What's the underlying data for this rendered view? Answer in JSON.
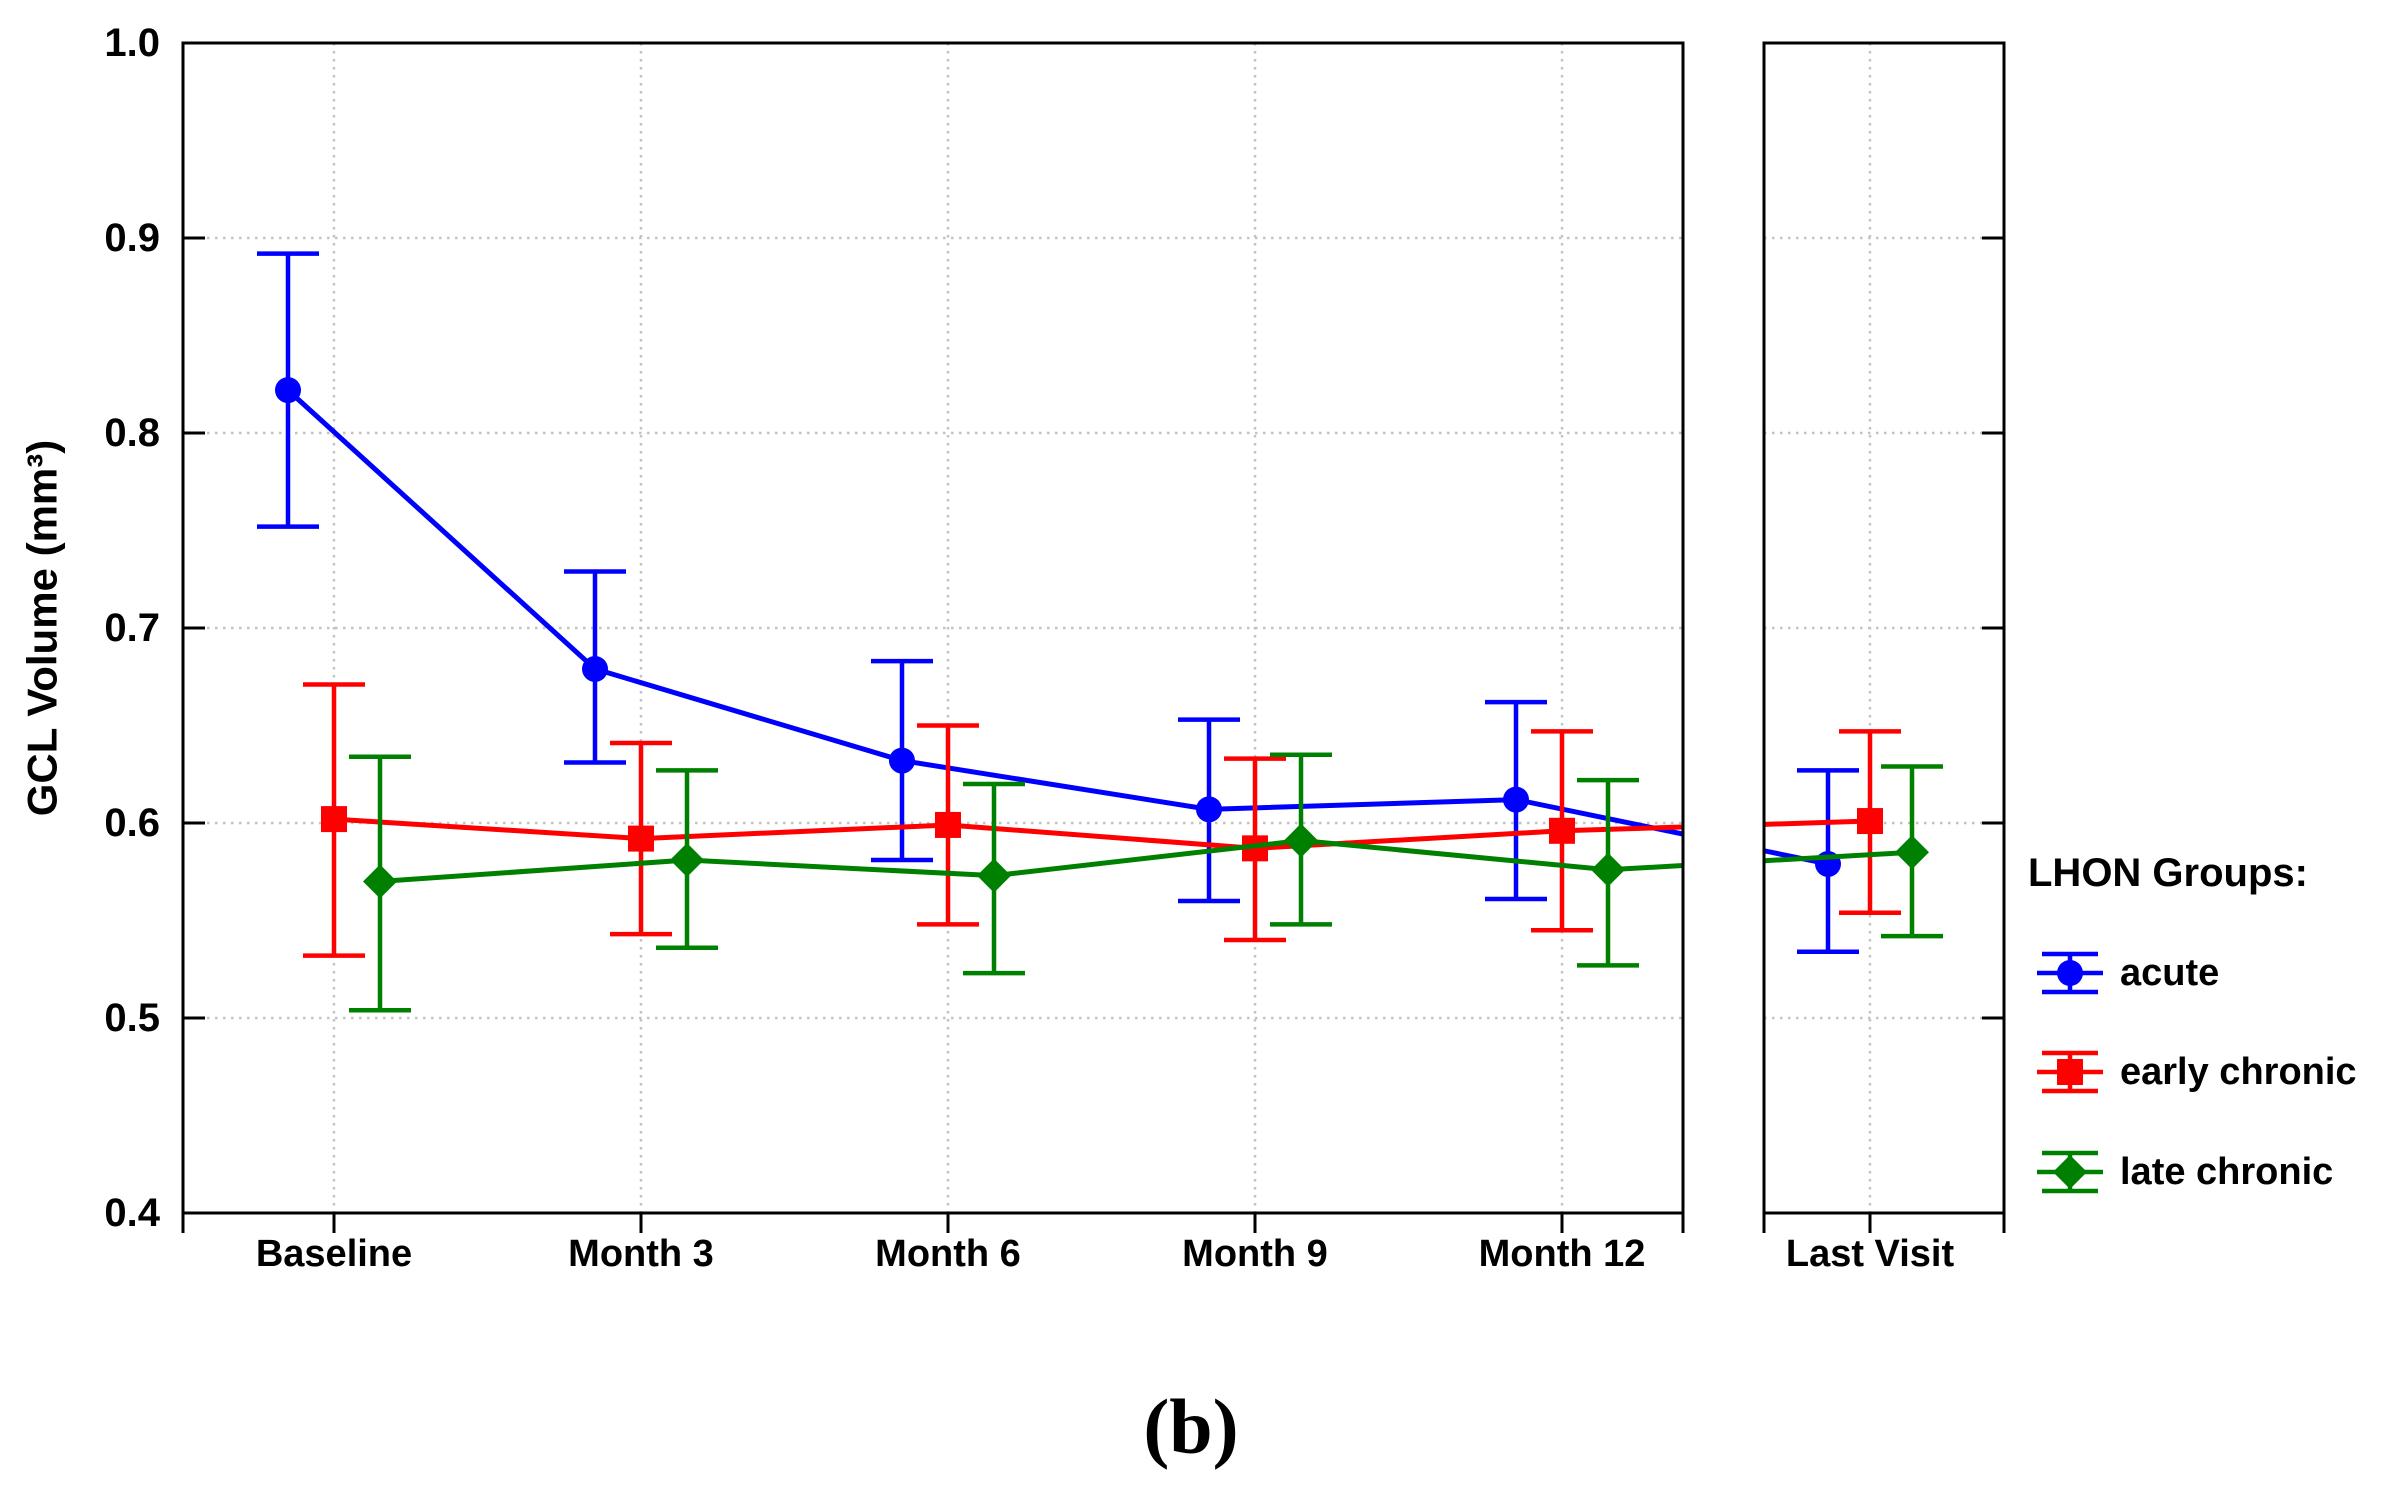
{
  "figure": {
    "caption": "(b)",
    "background": "#ffffff"
  },
  "chart_data": {
    "type": "line",
    "title": "",
    "xlabel": "",
    "ylabel": "GCL Volume (mm³)",
    "ylim": [
      0.4,
      1.0
    ],
    "ytick_labels": [
      "1.0",
      "0.9",
      "0.8",
      "0.7",
      "0.6",
      "0.5",
      "0.4"
    ],
    "grid": {
      "style": "dotted",
      "horizontal": true,
      "vertical": true,
      "color": "#c3c3c3"
    },
    "panels": [
      {
        "id": "timecourse",
        "categories": [
          "Baseline",
          "Month 3",
          "Month 6",
          "Month 9",
          "Month 12"
        ]
      },
      {
        "id": "last-visit",
        "categories": [
          "Last Visit"
        ]
      }
    ],
    "legend": {
      "title": "LHON Groups:",
      "position": "right-middle",
      "items": [
        "acute",
        "early chronic",
        "late chronic"
      ]
    },
    "series": [
      {
        "name": "acute",
        "color": "#0000ff",
        "marker": "circle",
        "values": [
          0.822,
          0.679,
          0.632,
          0.607,
          0.612,
          0.579
        ],
        "ci_low": [
          0.752,
          0.631,
          0.581,
          0.56,
          0.561,
          0.534
        ],
        "ci_high": [
          0.892,
          0.729,
          0.683,
          0.653,
          0.662,
          0.627
        ]
      },
      {
        "name": "early chronic",
        "color": "#ff0000",
        "marker": "square",
        "values": [
          0.602,
          0.592,
          0.599,
          0.587,
          0.596,
          0.601
        ],
        "ci_low": [
          0.532,
          0.543,
          0.548,
          0.54,
          0.545,
          0.554
        ],
        "ci_high": [
          0.671,
          0.641,
          0.65,
          0.633,
          0.647,
          0.647
        ]
      },
      {
        "name": "late chronic",
        "color": "#008000",
        "marker": "diamond",
        "values": [
          0.57,
          0.581,
          0.573,
          0.591,
          0.576,
          0.585
        ],
        "ci_low": [
          0.504,
          0.536,
          0.523,
          0.548,
          0.527,
          0.542
        ],
        "ci_high": [
          0.634,
          0.627,
          0.62,
          0.635,
          0.622,
          0.629
        ]
      }
    ]
  }
}
